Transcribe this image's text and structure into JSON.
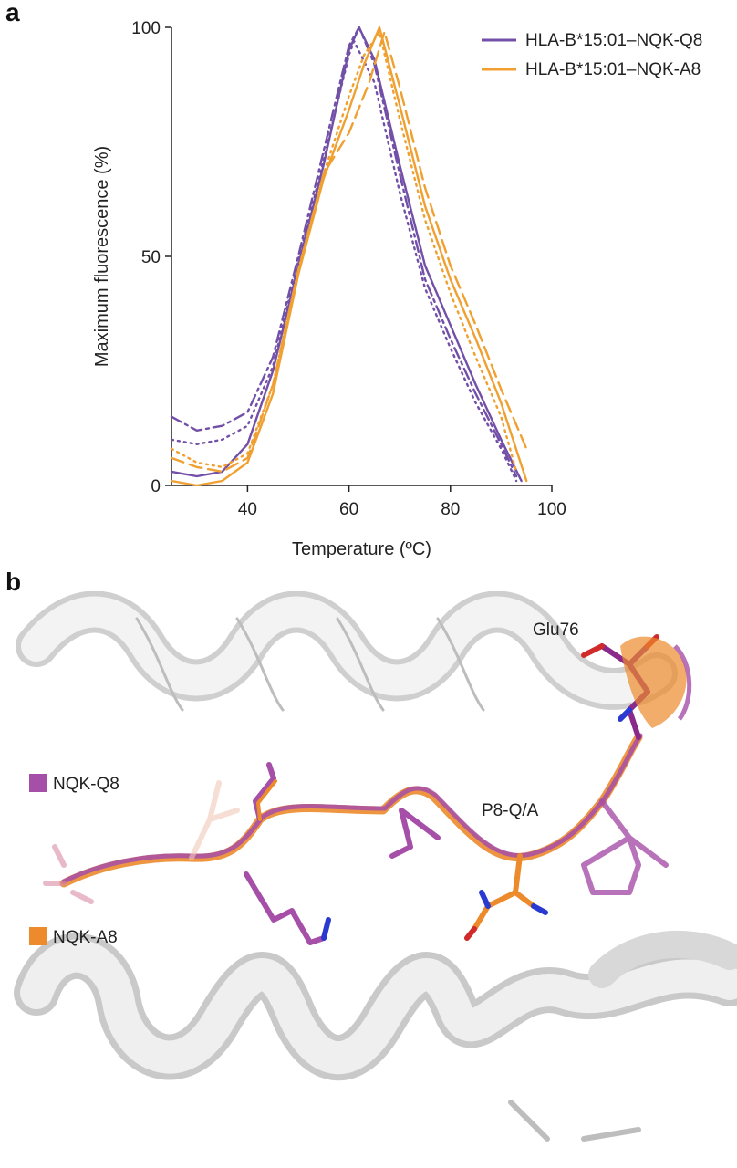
{
  "panels": {
    "a": "a",
    "b": "b"
  },
  "chart_data": {
    "type": "line",
    "xlabel": "Temperature (ºC)",
    "ylabel": "Maximum fluorescence (%)",
    "xlim": [
      25,
      100
    ],
    "ylim": [
      0,
      100
    ],
    "xticks": [
      40,
      60,
      80,
      100
    ],
    "yticks": [
      0,
      50,
      100
    ],
    "legend_position": "top-right",
    "legend": [
      {
        "label": "HLA-B*15:01–NQK-Q8",
        "color": "#7350a8"
      },
      {
        "label": "HLA-B*15:01–NQK-A8",
        "color": "#f0a030"
      }
    ],
    "series": [
      {
        "group": 0,
        "style": "solid",
        "x": [
          25,
          30,
          35,
          40,
          45,
          50,
          55,
          60,
          62,
          65,
          70,
          75,
          80,
          85,
          90,
          94
        ],
        "y": [
          3,
          2,
          3,
          9,
          25,
          48,
          70,
          95,
          100,
          93,
          70,
          48,
          35,
          22,
          10,
          1
        ]
      },
      {
        "group": 0,
        "style": "dashdot",
        "x": [
          25,
          30,
          35,
          40,
          45,
          50,
          55,
          60,
          62,
          65,
          70,
          75,
          80,
          85,
          90,
          93
        ],
        "y": [
          15,
          12,
          13,
          16,
          28,
          50,
          73,
          96,
          100,
          92,
          68,
          45,
          32,
          20,
          9,
          2
        ]
      },
      {
        "group": 0,
        "style": "dotted",
        "x": [
          25,
          30,
          35,
          40,
          45,
          50,
          55,
          60,
          61,
          65,
          70,
          75,
          80,
          85,
          90,
          93
        ],
        "y": [
          10,
          9,
          10,
          13,
          26,
          49,
          71,
          94,
          97,
          88,
          64,
          43,
          30,
          18,
          8,
          1
        ]
      },
      {
        "group": 1,
        "style": "solid",
        "x": [
          25,
          30,
          35,
          40,
          45,
          50,
          55,
          60,
          63,
          66,
          70,
          75,
          80,
          85,
          90,
          95
        ],
        "y": [
          1,
          0,
          1,
          5,
          20,
          46,
          67,
          82,
          92,
          100,
          83,
          61,
          45,
          32,
          18,
          1
        ]
      },
      {
        "group": 1,
        "style": "dashed",
        "x": [
          25,
          30,
          35,
          40,
          45,
          50,
          55,
          60,
          64,
          67,
          70,
          75,
          80,
          85,
          90,
          95
        ],
        "y": [
          6,
          4,
          3,
          6,
          22,
          47,
          68,
          77,
          88,
          99,
          87,
          65,
          48,
          35,
          21,
          8
        ]
      },
      {
        "group": 1,
        "style": "dotted",
        "x": [
          25,
          30,
          35,
          40,
          45,
          50,
          55,
          60,
          63,
          66,
          70,
          75,
          80,
          85,
          90,
          93
        ],
        "y": [
          8,
          5,
          4,
          7,
          22,
          47,
          68,
          85,
          94,
          99,
          80,
          58,
          42,
          28,
          15,
          3
        ]
      }
    ]
  },
  "structure": {
    "labels": {
      "glu": "Glu76",
      "p8": "P8-Q/A"
    },
    "legend": [
      {
        "label": "NQK-Q8",
        "color": "#a64fa8"
      },
      {
        "label": "NQK-A8",
        "color": "#ec8a2c"
      }
    ]
  }
}
